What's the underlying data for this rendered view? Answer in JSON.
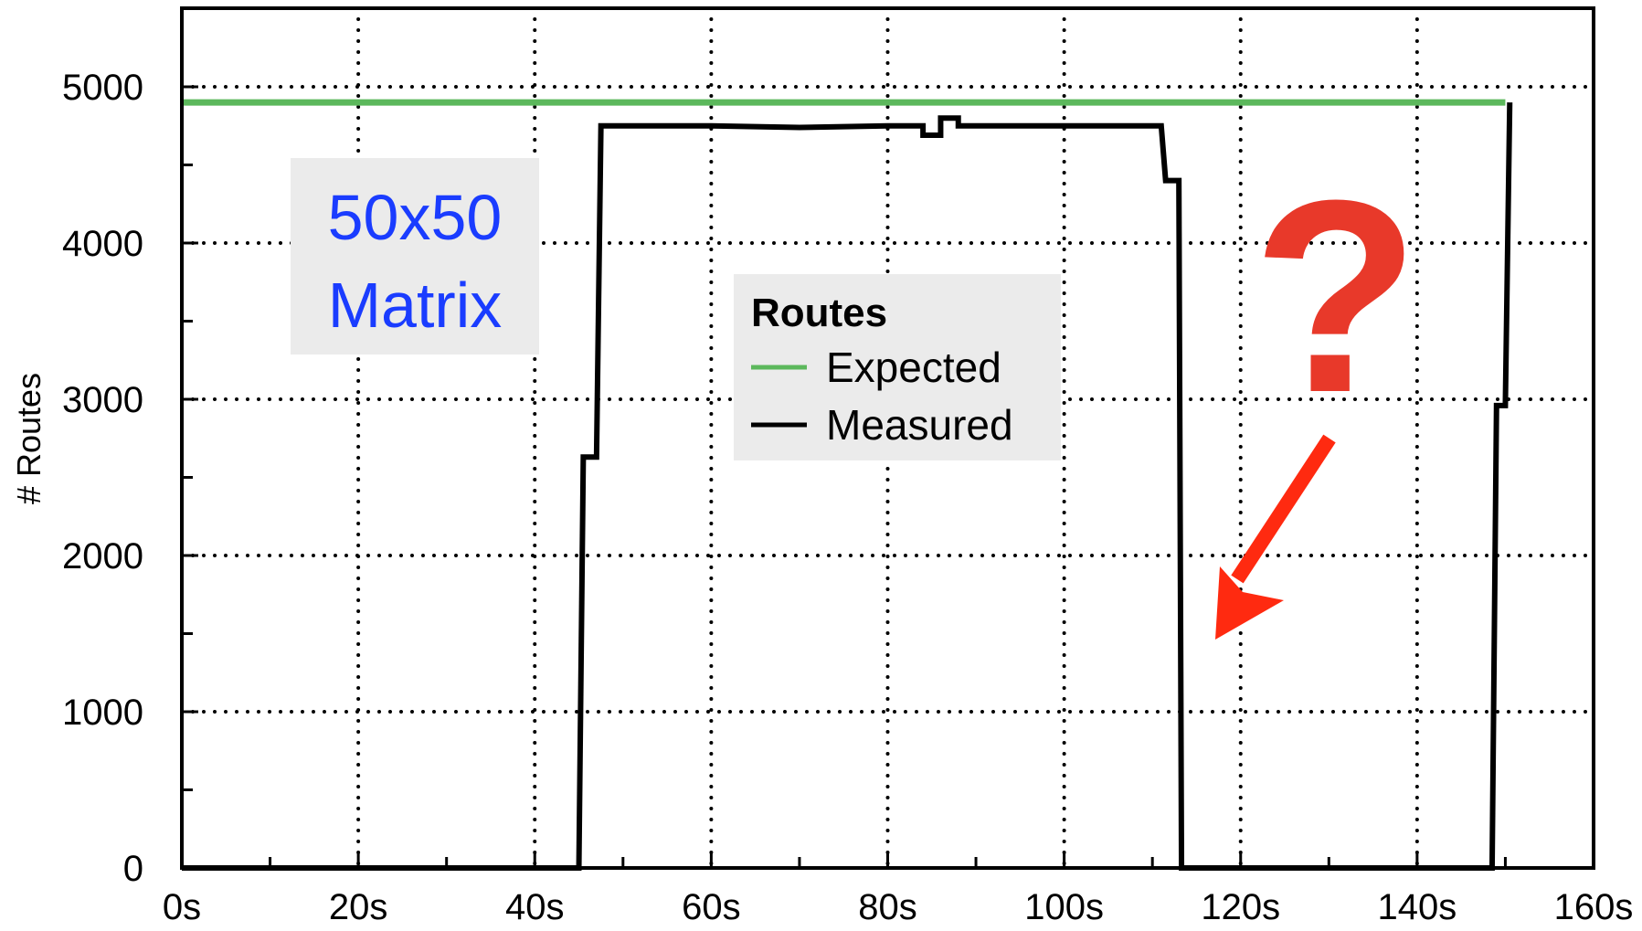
{
  "chart_data": {
    "type": "line",
    "title": "",
    "xlabel": "",
    "ylabel": "# Routes",
    "xlim": [
      0,
      160
    ],
    "ylim": [
      0,
      5500
    ],
    "x_ticks": [
      0,
      20,
      40,
      60,
      80,
      100,
      120,
      140,
      160
    ],
    "x_tick_labels": [
      "0s",
      "20s",
      "40s",
      "60s",
      "80s",
      "100s",
      "120s",
      "140s",
      "160s"
    ],
    "y_ticks": [
      0,
      1000,
      2000,
      3000,
      4000,
      5000
    ],
    "y_tick_labels": [
      "0",
      "1000",
      "2000",
      "3000",
      "4000",
      "5000"
    ],
    "grid": true,
    "legend": {
      "title": "Routes",
      "placement": "center",
      "entries": [
        {
          "label": "Expected",
          "color": "#5cb85c"
        },
        {
          "label": "Measured",
          "color": "#000000"
        }
      ]
    },
    "series": [
      {
        "name": "Expected",
        "color": "#5cb85c",
        "x": [
          0,
          150
        ],
        "y": [
          4900,
          4900
        ]
      },
      {
        "name": "Measured",
        "color": "#000000",
        "x": [
          0,
          45,
          45.5,
          47,
          47.5,
          60,
          70,
          80,
          84,
          84,
          86,
          86,
          88,
          88,
          100,
          111,
          111.5,
          113,
          113.3,
          114,
          148.5,
          149,
          150,
          150.5
        ],
        "y": [
          0,
          0,
          2630,
          2630,
          4750,
          4750,
          4740,
          4750,
          4750,
          4690,
          4690,
          4800,
          4800,
          4750,
          4750,
          4750,
          4400,
          4400,
          0,
          0,
          0,
          2960,
          2960,
          4900
        ]
      }
    ],
    "annotations": [
      {
        "text": "50x50\nMatrix",
        "color": "#1a3cff",
        "background": "#ebebeb"
      },
      {
        "text": "?",
        "color": "#e8392a",
        "arrow": true
      }
    ]
  },
  "text": {
    "ylabel": "# Routes",
    "legend_title": "Routes",
    "legend_expected": "Expected",
    "legend_measured": "Measured",
    "note_line1": "50x50",
    "note_line2": "Matrix",
    "qmark": "?"
  },
  "colors": {
    "expected": "#5cb85c",
    "measured": "#000000",
    "note_text": "#1a3cff",
    "note_bg": "#ebebeb",
    "question": "#e8392a",
    "arrow": "#ff2a10",
    "legend_bg": "#ebebeb"
  }
}
